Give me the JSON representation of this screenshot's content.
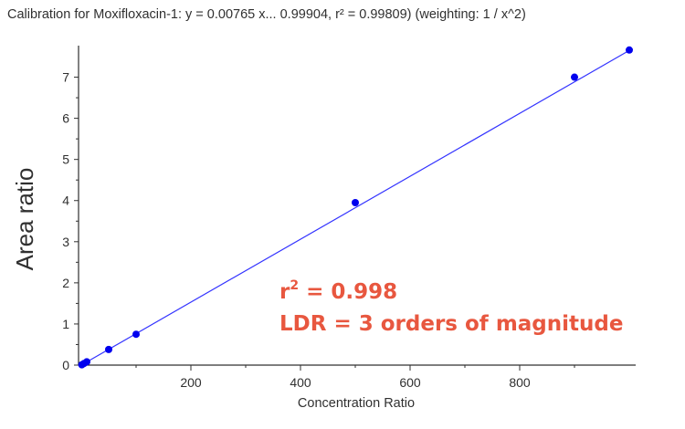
{
  "chart_data": {
    "type": "scatter",
    "title": "Calibration for Moxifloxacin-1: y = 0.00765 x... 0.99904, r² = 0.99809)  (weighting: 1 / x^2)",
    "xlabel": "Concentration Ratio",
    "ylabel": "Area ratio",
    "xlim": [
      0,
      1000
    ],
    "ylim": [
      0,
      7.7
    ],
    "xticks": [
      200,
      400,
      600,
      800
    ],
    "yticks": [
      0,
      1,
      2,
      3,
      4,
      5,
      6,
      7
    ],
    "grid": false,
    "points": [
      {
        "x": 1,
        "y": 0.008
      },
      {
        "x": 5,
        "y": 0.04
      },
      {
        "x": 10,
        "y": 0.08
      },
      {
        "x": 50,
        "y": 0.38
      },
      {
        "x": 100,
        "y": 0.75
      },
      {
        "x": 500,
        "y": 3.95
      },
      {
        "x": 900,
        "y": 7.0
      },
      {
        "x": 1000,
        "y": 7.66
      }
    ],
    "fit": {
      "slope": 0.00765,
      "intercept": 0
    },
    "annotations": [
      {
        "base": "r",
        "sup": "2",
        "rest": " = 0.998"
      },
      {
        "text": "LDR = 3 orders of magnitude"
      }
    ]
  }
}
